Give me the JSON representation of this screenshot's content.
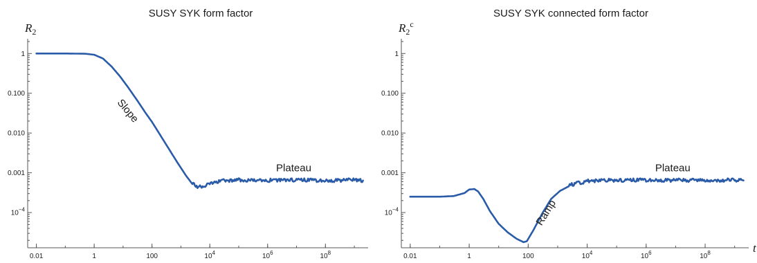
{
  "chart_data": [
    {
      "type": "line",
      "title": "SUSY SYK form factor",
      "ylabel_main": "R",
      "ylabel_sub": "2",
      "ylabel_sup": "",
      "xlabel": "",
      "xscale": "log",
      "yscale": "log",
      "xlim": [
        0.005,
        3000000000.0
      ],
      "ylim": [
        1.3e-05,
        2
      ],
      "xticks": [
        0.01,
        1,
        100,
        10000,
        1000000,
        100000000
      ],
      "xtick_labels": [
        "0.01",
        "1",
        "100",
        "10^4",
        "10^6",
        "10^8"
      ],
      "yticks": [
        1,
        0.1,
        0.01,
        0.001,
        0.0001
      ],
      "ytick_labels": [
        "1",
        "0.100",
        "0.010",
        "0.001",
        "10^-4"
      ],
      "color": "#2a5ba8",
      "series": [
        {
          "x": [
            0.01,
            0.1,
            0.5,
            1,
            2,
            4,
            8,
            15,
            30,
            60,
            100,
            200,
            400,
            800,
            1500,
            2500,
            4000,
            6000,
            10000,
            30000,
            100000,
            1000000,
            10000000,
            100000000,
            1000000000,
            2000000000
          ],
          "y": [
            1,
            1,
            0.985,
            0.93,
            0.75,
            0.47,
            0.26,
            0.14,
            0.068,
            0.032,
            0.019,
            0.0085,
            0.0038,
            0.0017,
            0.00085,
            0.00052,
            0.00044,
            0.00046,
            0.00055,
            0.00063,
            0.00066,
            0.00065,
            0.00066,
            0.00064,
            0.00066,
            0.00064
          ]
        }
      ],
      "annotations": [
        {
          "text": "Slope",
          "x": 12,
          "y": 0.032,
          "rotation": 50
        },
        {
          "text": "Plateau",
          "x": 8000000,
          "y": 0.0011,
          "rotation": 0
        }
      ]
    },
    {
      "type": "line",
      "title": "SUSY SYK connected form factor",
      "ylabel_main": "R",
      "ylabel_sub": "2",
      "ylabel_sup": "c",
      "xlabel": "t",
      "xscale": "log",
      "yscale": "log",
      "xlim": [
        0.005,
        3000000000.0
      ],
      "ylim": [
        1.3e-05,
        2
      ],
      "xticks": [
        0.01,
        1,
        100,
        10000,
        1000000,
        100000000
      ],
      "xtick_labels": [
        "0.01",
        "1",
        "100",
        "10^4",
        "10^6",
        "10^8"
      ],
      "yticks": [
        1,
        0.1,
        0.01,
        0.001,
        0.0001
      ],
      "ytick_labels": [
        "1",
        "0.100",
        "0.010",
        "0.001",
        "10^-4"
      ],
      "color": "#2a5ba8",
      "series": [
        {
          "x": [
            0.01,
            0.1,
            0.3,
            0.7,
            1,
            1.5,
            2,
            3,
            5,
            10,
            20,
            40,
            70,
            90,
            150,
            300,
            600,
            1200,
            3000,
            10000,
            30000,
            100000,
            1000000,
            10000000,
            100000000,
            1000000000,
            2000000000
          ],
          "y": [
            0.00025,
            0.00025,
            0.00026,
            0.00031,
            0.00038,
            0.00039,
            0.00034,
            0.00022,
            0.00011,
            5.2e-05,
            3.2e-05,
            2.2e-05,
            1.8e-05,
            1.9e-05,
            3.6e-05,
            9.5e-05,
            0.00022,
            0.00035,
            0.0005,
            0.00062,
            0.00065,
            0.00064,
            0.00066,
            0.00065,
            0.00064,
            0.00066,
            0.00064
          ]
        }
      ],
      "annotations": [
        {
          "text": "Ramp",
          "x": 500,
          "y": 9e-05,
          "rotation": -58
        },
        {
          "text": "Plateau",
          "x": 8000000,
          "y": 0.0011,
          "rotation": 0
        }
      ]
    }
  ]
}
